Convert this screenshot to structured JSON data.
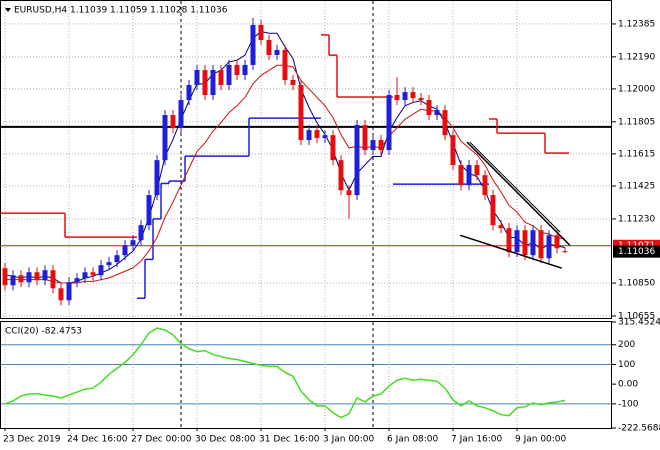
{
  "chart_data": {
    "type": "candlestick",
    "title": "EURUSD,H4  1.11039 1.11059 1.11028 1.11036",
    "categories": [
      "23 Dec 2019",
      null,
      null,
      null,
      null,
      null,
      null,
      null,
      "24 Dec 16:00",
      null,
      null,
      null,
      null,
      null,
      null,
      null,
      "27 Dec 00:00",
      null,
      null,
      null,
      null,
      null,
      null,
      null,
      "30 Dec 08:00",
      null,
      null,
      null,
      null,
      null,
      null,
      null,
      "31 Dec 16:00",
      null,
      null,
      null,
      null,
      null,
      null,
      null,
      "3 Jan 00:00",
      null,
      null,
      null,
      null,
      null,
      null,
      null,
      "6 Jan 08:00",
      null,
      null,
      null,
      null,
      null,
      null,
      null,
      "7 Jan 16:00",
      null,
      null,
      null,
      null,
      null,
      null,
      null,
      "9 Jan 00:00",
      null,
      null,
      null,
      null,
      null,
      null
    ],
    "open": [
      1.10938,
      1.10837,
      1.10896,
      1.10855,
      1.10914,
      1.10867,
      1.10926,
      1.10819,
      1.10748,
      1.10855,
      1.10879,
      1.10914,
      1.10896,
      1.10956,
      1.10974,
      1.11015,
      1.11074,
      1.11104,
      1.11193,
      1.11371,
      1.11578,
      1.11845,
      1.11768,
      1.11934,
      1.12023,
      1.12112,
      1.11964,
      1.12112,
      1.12023,
      1.12142,
      1.12082,
      1.12142,
      1.12379,
      1.1229,
      1.12201,
      1.12231,
      1.12053,
      1.12023,
      1.11697,
      1.11756,
      1.11709,
      1.11726,
      1.11578,
      1.114,
      1.11371,
      1.11786,
      1.11638,
      1.11697,
      1.11638,
      1.11964,
      1.11934,
      1.11981,
      1.11946,
      1.11934,
      1.11845,
      1.11875,
      1.11726,
      1.11549,
      1.1143,
      1.11549,
      1.11489,
      1.11371,
      1.11193,
      1.11175,
      1.11033,
      1.11163,
      1.11015,
      1.11163,
      1.10997,
      1.11133,
      1.11039
    ],
    "high": [
      1.10968,
      1.10926,
      1.10926,
      1.10944,
      1.10944,
      1.10956,
      1.10956,
      1.10849,
      1.10885,
      1.10909,
      1.10944,
      1.10944,
      1.10986,
      1.11004,
      1.11045,
      1.11104,
      1.11134,
      1.11223,
      1.11401,
      1.11608,
      1.11875,
      1.11875,
      1.11964,
      1.12053,
      1.12142,
      1.12142,
      1.12142,
      1.12142,
      1.12172,
      1.12172,
      1.12172,
      1.1242,
      1.12409,
      1.1232,
      1.12261,
      1.12261,
      1.12083,
      1.12053,
      1.11786,
      1.11786,
      1.11756,
      1.11756,
      1.11608,
      1.1143,
      1.11816,
      1.11816,
      1.11727,
      1.11727,
      1.11994,
      1.1207,
      1.12011,
      1.12011,
      1.11976,
      1.11964,
      1.11905,
      1.11905,
      1.11756,
      1.11579,
      1.11579,
      1.11579,
      1.11519,
      1.11401,
      1.11223,
      1.11205,
      1.11193,
      1.11193,
      1.11193,
      1.11193,
      1.11163,
      1.11163,
      1.11059
    ],
    "low": [
      1.10807,
      1.10807,
      1.10825,
      1.10825,
      1.10837,
      1.10837,
      1.10789,
      1.10718,
      1.10718,
      1.10825,
      1.10849,
      1.10866,
      1.10866,
      1.10926,
      1.10944,
      1.10985,
      1.11044,
      1.11074,
      1.11163,
      1.11341,
      1.11548,
      1.11738,
      1.11738,
      1.11904,
      1.11993,
      1.11934,
      1.11934,
      1.11993,
      1.11993,
      1.12052,
      1.12052,
      1.12112,
      1.1226,
      1.12171,
      1.12171,
      1.12023,
      1.11993,
      1.11667,
      1.11667,
      1.11679,
      1.11679,
      1.11548,
      1.1137,
      1.1123,
      1.11341,
      1.11608,
      1.11608,
      1.11608,
      1.11608,
      1.11904,
      1.11904,
      1.11916,
      1.11904,
      1.11815,
      1.11815,
      1.11696,
      1.11519,
      1.114,
      1.114,
      1.11459,
      1.11341,
      1.11163,
      1.11145,
      1.11003,
      1.11003,
      1.10985,
      1.10985,
      1.10967,
      1.10967,
      1.11026,
      1.11028
    ],
    "close": [
      1.10837,
      1.10896,
      1.10855,
      1.10914,
      1.10867,
      1.10926,
      1.10819,
      1.10748,
      1.10855,
      1.10879,
      1.10914,
      1.10896,
      1.10956,
      1.10974,
      1.11015,
      1.11074,
      1.11104,
      1.11193,
      1.11371,
      1.11578,
      1.11845,
      1.11768,
      1.11934,
      1.12023,
      1.12112,
      1.11964,
      1.12112,
      1.12023,
      1.12142,
      1.12082,
      1.12142,
      1.12379,
      1.1229,
      1.12201,
      1.12231,
      1.12053,
      1.12023,
      1.11697,
      1.11756,
      1.11709,
      1.11726,
      1.11578,
      1.114,
      1.11371,
      1.11786,
      1.11638,
      1.11697,
      1.11638,
      1.11964,
      1.11934,
      1.11981,
      1.11946,
      1.11934,
      1.11845,
      1.11875,
      1.11726,
      1.11549,
      1.1143,
      1.11549,
      1.11489,
      1.11371,
      1.11193,
      1.11175,
      1.11033,
      1.11163,
      1.11015,
      1.11163,
      1.10997,
      1.11133,
      1.11056,
      1.11036
    ],
    "up_color": "#1f1fd6",
    "down_color": "#e01010",
    "ma_lines": [
      {
        "color": "#000080",
        "values": [
          1.109,
          1.1089,
          1.1088,
          1.1089,
          1.1088,
          1.1089,
          1.1088,
          1.1085,
          1.1085,
          1.1086,
          1.1088,
          1.1089,
          1.1091,
          1.1093,
          1.1096,
          1.11,
          1.1104,
          1.1111,
          1.1124,
          1.114,
          1.116,
          1.117,
          1.1182,
          1.1193,
          1.1203,
          1.1203,
          1.1209,
          1.1211,
          1.1216,
          1.1217,
          1.122,
          1.123,
          1.1234,
          1.1233,
          1.1233,
          1.1225,
          1.1218,
          1.12,
          1.1189,
          1.118,
          1.1173,
          1.1164,
          1.115,
          1.114,
          1.115,
          1.1155,
          1.116,
          1.116,
          1.1175,
          1.1183,
          1.119,
          1.1192,
          1.1193,
          1.119,
          1.1188,
          1.118,
          1.1168,
          1.1155,
          1.115,
          1.1148,
          1.114,
          1.1128,
          1.1121,
          1.1112,
          1.1112,
          1.1107,
          1.1109,
          1.1105,
          1.1108,
          1.1107,
          1.1106
        ]
      },
      {
        "color": "#d01010",
        "values": [
          1.1087,
          1.1087,
          1.1087,
          1.1087,
          1.1087,
          1.1087,
          1.1086,
          1.1085,
          1.1085,
          1.1085,
          1.1086,
          1.1086,
          1.1087,
          1.1088,
          1.109,
          1.1092,
          1.1094,
          1.1098,
          1.1104,
          1.1112,
          1.1124,
          1.1133,
          1.1143,
          1.1153,
          1.1163,
          1.1168,
          1.1175,
          1.118,
          1.1186,
          1.119,
          1.1195,
          1.1203,
          1.1208,
          1.1211,
          1.1214,
          1.1214,
          1.1213,
          1.1205,
          1.12,
          1.1195,
          1.119,
          1.1183,
          1.1173,
          1.1165,
          1.1166,
          1.1165,
          1.1166,
          1.1165,
          1.1172,
          1.1177,
          1.1182,
          1.1185,
          1.1188,
          1.1187,
          1.1187,
          1.1183,
          1.1177,
          1.1169,
          1.1165,
          1.1161,
          1.1155,
          1.1146,
          1.1139,
          1.1131,
          1.1127,
          1.1121,
          1.1119,
          1.1115,
          1.1114,
          1.1112,
          1.1111
        ]
      }
    ],
    "step_lines": [
      {
        "color": "#e01010",
        "values": [
          1.11264,
          1.11264,
          1.11264,
          1.11264,
          1.11264,
          1.11264,
          1.11264,
          1.11264,
          1.11122,
          1.11122,
          1.11122,
          1.11122,
          1.11122,
          1.11122,
          1.11122,
          1.11122,
          1.11122,
          null,
          null,
          null,
          null,
          null,
          null,
          null,
          null,
          null,
          null,
          null,
          null,
          null,
          null,
          null,
          null,
          null,
          null,
          null,
          null,
          null,
          null,
          null,
          1.1232,
          1.122,
          1.11952,
          1.11952,
          1.11952,
          1.11952,
          1.11952,
          1.11952,
          1.11952,
          null,
          null,
          null,
          null,
          null,
          null,
          null,
          null,
          null,
          null,
          null,
          null,
          1.11822,
          1.11738,
          1.11738,
          1.11738,
          1.11738,
          1.11738,
          1.11738,
          1.1162,
          1.1162,
          1.1162
        ]
      },
      {
        "color": "#1f1fd6",
        "values": [
          null,
          null,
          null,
          null,
          null,
          null,
          null,
          null,
          null,
          null,
          null,
          null,
          null,
          null,
          null,
          null,
          null,
          1.1076,
          1.1099,
          1.1123,
          1.1144,
          1.11454,
          1.11454,
          1.11602,
          1.11602,
          1.11602,
          1.11602,
          1.11602,
          1.11602,
          1.11602,
          1.11602,
          1.11827,
          1.11827,
          1.11827,
          1.11827,
          1.11827,
          1.11827,
          1.11827,
          1.11827,
          1.11827,
          null,
          null,
          null,
          null,
          null,
          null,
          null,
          null,
          null,
          1.11436,
          1.11436,
          1.11436,
          1.11436,
          1.11436,
          1.11436,
          1.11436,
          1.11436,
          1.11436,
          1.11436,
          1.11436,
          1.11436,
          null,
          null,
          null,
          null,
          null,
          null,
          null,
          null,
          null,
          null
        ]
      }
    ],
    "hline": 1.11775,
    "ask": 1.11071,
    "bid": 1.11036,
    "trendlines": [
      {
        "x": [
          57.75,
          70.6
        ],
        "y": [
          1.11685,
          1.11074
        ]
      },
      {
        "x": [
          58.1,
          69.4
        ],
        "y": [
          1.11685,
          1.11151
        ]
      },
      {
        "x": [
          56.9,
          69.6
        ],
        "y": [
          1.11133,
          1.10938
        ]
      }
    ],
    "ylim": [
      1.10643,
      1.12509
    ],
    "yticks": [
      1.12385,
      {
        "value": 1.1219,
        "label": "1.12190"
      },
      {
        "value": 1.12,
        "label": "1.12000"
      },
      1.11805,
      1.11615,
      1.11425,
      {
        "value": 1.1123,
        "label": "1.11230"
      },
      {
        "value": 1.1085,
        "label": "1.10850"
      },
      1.10655
    ],
    "grid": true,
    "cci": {
      "label": "CCI(20) -82.4753",
      "color": "#44dd22",
      "values": [
        -100,
        -85,
        -60,
        -50,
        -48,
        -55,
        -60,
        -70,
        -55,
        -40,
        -25,
        -20,
        10,
        50,
        80,
        110,
        150,
        200,
        260,
        285,
        275,
        250,
        205,
        180,
        165,
        170,
        150,
        140,
        130,
        125,
        115,
        105,
        95,
        90,
        90,
        60,
        40,
        -35,
        -80,
        -110,
        -110,
        -145,
        -170,
        -150,
        -70,
        -90,
        -60,
        -50,
        -10,
        20,
        30,
        20,
        25,
        20,
        15,
        -20,
        -80,
        -110,
        -85,
        -110,
        -120,
        -135,
        -155,
        -160,
        -120,
        -115,
        -95,
        -105,
        -95,
        -90,
        -82.4753
      ],
      "ylim": [
        -222.5688,
        315.4524
      ],
      "yticks": [
        315.4524,
        200,
        100,
        {
          "value": 0,
          "label": "0.00"
        },
        -100,
        -222.5688
      ],
      "levels": [
        200,
        100,
        -100
      ]
    }
  }
}
